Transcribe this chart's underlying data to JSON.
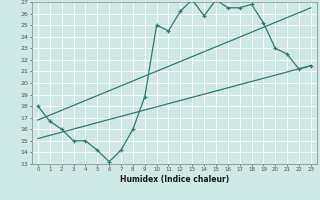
{
  "title": "",
  "xlabel": "Humidex (Indice chaleur)",
  "bg_color": "#cde8e5",
  "grid_color": "#ffffff",
  "line_color": "#2e7d6e",
  "xlim": [
    -0.5,
    23.5
  ],
  "ylim": [
    13,
    27
  ],
  "xticks": [
    0,
    1,
    2,
    3,
    4,
    5,
    6,
    7,
    8,
    9,
    10,
    11,
    12,
    13,
    14,
    15,
    16,
    17,
    18,
    19,
    20,
    21,
    22,
    23
  ],
  "yticks": [
    13,
    14,
    15,
    16,
    17,
    18,
    19,
    20,
    21,
    22,
    23,
    24,
    25,
    26,
    27
  ],
  "line1_x": [
    0,
    1,
    2,
    3,
    4,
    5,
    6,
    7,
    8,
    9,
    10,
    11,
    12,
    13,
    14,
    15,
    16,
    17,
    18,
    19,
    20,
    21,
    22,
    23
  ],
  "line1_y": [
    18.0,
    16.7,
    16.0,
    15.0,
    15.0,
    14.2,
    13.2,
    14.2,
    16.0,
    18.8,
    25.0,
    24.5,
    26.2,
    27.2,
    25.8,
    27.2,
    26.5,
    26.5,
    26.8,
    25.2,
    23.0,
    22.5,
    21.2,
    21.5
  ],
  "line2_x": [
    0,
    23
  ],
  "line2_y": [
    16.8,
    26.5
  ],
  "line3_x": [
    0,
    23
  ],
  "line3_y": [
    15.2,
    21.5
  ]
}
